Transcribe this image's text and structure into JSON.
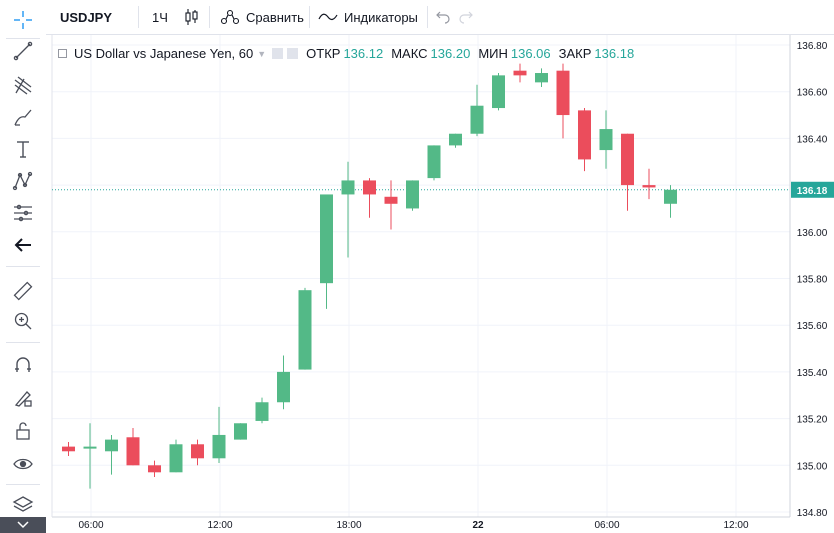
{
  "toolbar": {
    "symbol": "USDJPY",
    "interval": "1Ч",
    "compare_label": "Сравнить",
    "indicators_label": "Индикаторы"
  },
  "legend": {
    "title": "US Dollar vs Japanese Yen, 60",
    "open_label": "ОТКР",
    "open_value": "136.12",
    "high_label": "МАКС",
    "high_value": "136.20",
    "low_label": "МИН",
    "low_value": "136.06",
    "close_label": "ЗАКР",
    "close_value": "136.18"
  },
  "colors": {
    "up": "#53b987",
    "down": "#eb4d5c",
    "price_line": "#26a69a",
    "grid": "#f0f3fa"
  },
  "left_toolbar_icons": [
    "crosshair-icon",
    "trend-line-icon",
    "pitchfork-icon",
    "brush-icon",
    "text-icon",
    "pattern-icon",
    "forecast-icon",
    "back-arrow-icon",
    "ruler-icon",
    "zoom-in-icon",
    "magnet-icon",
    "lock-drawing-icon",
    "unlock-icon",
    "eye-icon",
    "layers-icon"
  ],
  "chart_data": {
    "type": "candlestick",
    "ylim": [
      134.8,
      136.8
    ],
    "y_ticks": [
      "136.80",
      "136.60",
      "136.40",
      "136.20",
      "136.00",
      "135.80",
      "135.60",
      "135.40",
      "135.20",
      "135.00",
      "134.80"
    ],
    "x_ticks": [
      "06:00",
      "12:00",
      "18:00",
      "22",
      "06:00",
      "12:00"
    ],
    "current_price": "136.18",
    "candles": [
      {
        "o": 135.08,
        "h": 135.1,
        "l": 135.04,
        "c": 135.06
      },
      {
        "o": 135.08,
        "h": 135.18,
        "l": 134.9,
        "c": 135.08
      },
      {
        "o": 135.06,
        "h": 135.13,
        "l": 134.96,
        "c": 135.11
      },
      {
        "o": 135.12,
        "h": 135.16,
        "l": 135.0,
        "c": 135.0
      },
      {
        "o": 135.0,
        "h": 135.02,
        "l": 134.95,
        "c": 134.97
      },
      {
        "o": 134.97,
        "h": 135.11,
        "l": 134.97,
        "c": 135.09
      },
      {
        "o": 135.09,
        "h": 135.11,
        "l": 135.0,
        "c": 135.03
      },
      {
        "o": 135.03,
        "h": 135.25,
        "l": 135.01,
        "c": 135.13
      },
      {
        "o": 135.11,
        "h": 135.18,
        "l": 135.11,
        "c": 135.18
      },
      {
        "o": 135.19,
        "h": 135.29,
        "l": 135.18,
        "c": 135.27
      },
      {
        "o": 135.27,
        "h": 135.47,
        "l": 135.24,
        "c": 135.4
      },
      {
        "o": 135.41,
        "h": 135.76,
        "l": 135.41,
        "c": 135.75
      },
      {
        "o": 135.78,
        "h": 136.16,
        "l": 135.67,
        "c": 136.16
      },
      {
        "o": 136.16,
        "h": 136.3,
        "l": 135.89,
        "c": 136.22
      },
      {
        "o": 136.22,
        "h": 136.23,
        "l": 136.06,
        "c": 136.16
      },
      {
        "o": 136.15,
        "h": 136.22,
        "l": 136.01,
        "c": 136.12
      },
      {
        "o": 136.1,
        "h": 136.22,
        "l": 136.09,
        "c": 136.22
      },
      {
        "o": 136.23,
        "h": 136.37,
        "l": 136.22,
        "c": 136.37
      },
      {
        "o": 136.37,
        "h": 136.42,
        "l": 136.36,
        "c": 136.42
      },
      {
        "o": 136.42,
        "h": 136.63,
        "l": 136.41,
        "c": 136.54
      },
      {
        "o": 136.53,
        "h": 136.68,
        "l": 136.52,
        "c": 136.67
      },
      {
        "o": 136.69,
        "h": 136.72,
        "l": 136.64,
        "c": 136.67
      },
      {
        "o": 136.64,
        "h": 136.7,
        "l": 136.62,
        "c": 136.68
      },
      {
        "o": 136.69,
        "h": 136.72,
        "l": 136.4,
        "c": 136.5
      },
      {
        "o": 136.52,
        "h": 136.53,
        "l": 136.26,
        "c": 136.31
      },
      {
        "o": 136.35,
        "h": 136.52,
        "l": 136.27,
        "c": 136.44
      },
      {
        "o": 136.42,
        "h": 136.42,
        "l": 136.09,
        "c": 136.2
      },
      {
        "o": 136.2,
        "h": 136.27,
        "l": 136.14,
        "c": 136.19
      },
      {
        "o": 136.12,
        "h": 136.2,
        "l": 136.06,
        "c": 136.18
      }
    ]
  }
}
